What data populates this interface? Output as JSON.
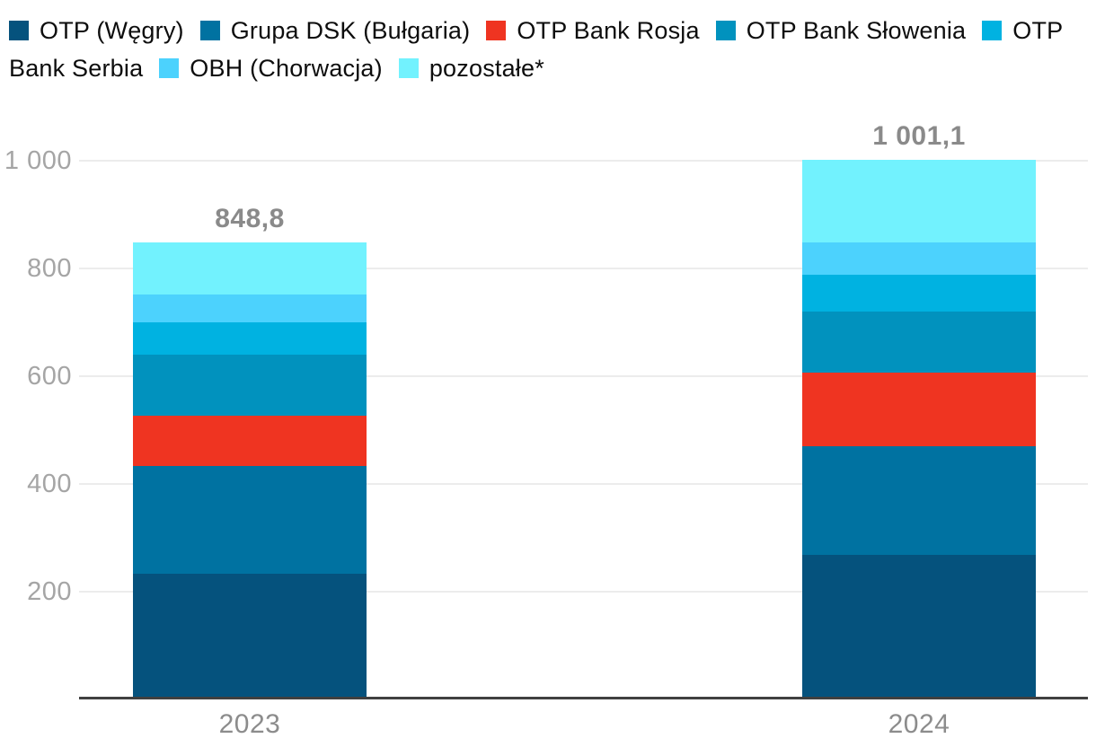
{
  "legend": {
    "items": [
      {
        "label": "OTP (Węgry)",
        "color": "#05527d"
      },
      {
        "label": "Grupa DSK (Bułgaria)",
        "color": "#0072a1"
      },
      {
        "label": "OTP Bank Rosja",
        "color": "#ef3421"
      },
      {
        "label": "OTP Bank Słowenia",
        "color": "#0192be"
      },
      {
        "label": "OTP Bank Serbia",
        "color": "#00b2e1"
      },
      {
        "label": "OBH (Chorwacja)",
        "color": "#4cd2fd"
      },
      {
        "label": "pozostałe*",
        "color": "#72f2fe"
      }
    ]
  },
  "chart_data": {
    "type": "bar",
    "stacked": true,
    "title": "",
    "xlabel": "",
    "ylabel": "",
    "categories": [
      "2023",
      "2024"
    ],
    "series": [
      {
        "name": "OTP (Węgry)",
        "color": "#05527d",
        "values": [
          233.0,
          269.0
        ]
      },
      {
        "name": "Grupa DSK (Bułgaria)",
        "color": "#0072a1",
        "values": [
          200.0,
          201.0
        ]
      },
      {
        "name": "OTP Bank Rosja",
        "color": "#ef3421",
        "values": [
          93.0,
          136.0
        ]
      },
      {
        "name": "OTP Bank Słowenia",
        "color": "#0192be",
        "values": [
          114.0,
          114.0
        ]
      },
      {
        "name": "OTP Bank Serbia",
        "color": "#00b2e1",
        "values": [
          60.0,
          68.0
        ]
      },
      {
        "name": "OBH (Chorwacja)",
        "color": "#4cd2fd",
        "values": [
          51.0,
          60.0
        ]
      },
      {
        "name": "pozostałe*",
        "color": "#72f2fe",
        "values": [
          97.8,
          153.1
        ]
      }
    ],
    "totals": [
      848.8,
      1001.1
    ],
    "total_labels": [
      "848,8",
      "1 001,1"
    ],
    "y_ticks": [
      {
        "value": 1000,
        "label": "1 000"
      },
      {
        "value": 800,
        "label": "800"
      },
      {
        "value": 600,
        "label": "600"
      },
      {
        "value": 400,
        "label": "400"
      },
      {
        "value": 200,
        "label": "200"
      }
    ],
    "ylim": [
      0,
      1000
    ],
    "grid": true,
    "legend_position": "top-left"
  },
  "colors": {
    "background": "#ffffff",
    "legend_text": "#0d0d0d",
    "grid": "#ececec",
    "axis": "#404040",
    "tick_label": "#a5a5a5",
    "value_label": "#8a8a8a",
    "category_label": "#8c8c8c"
  }
}
